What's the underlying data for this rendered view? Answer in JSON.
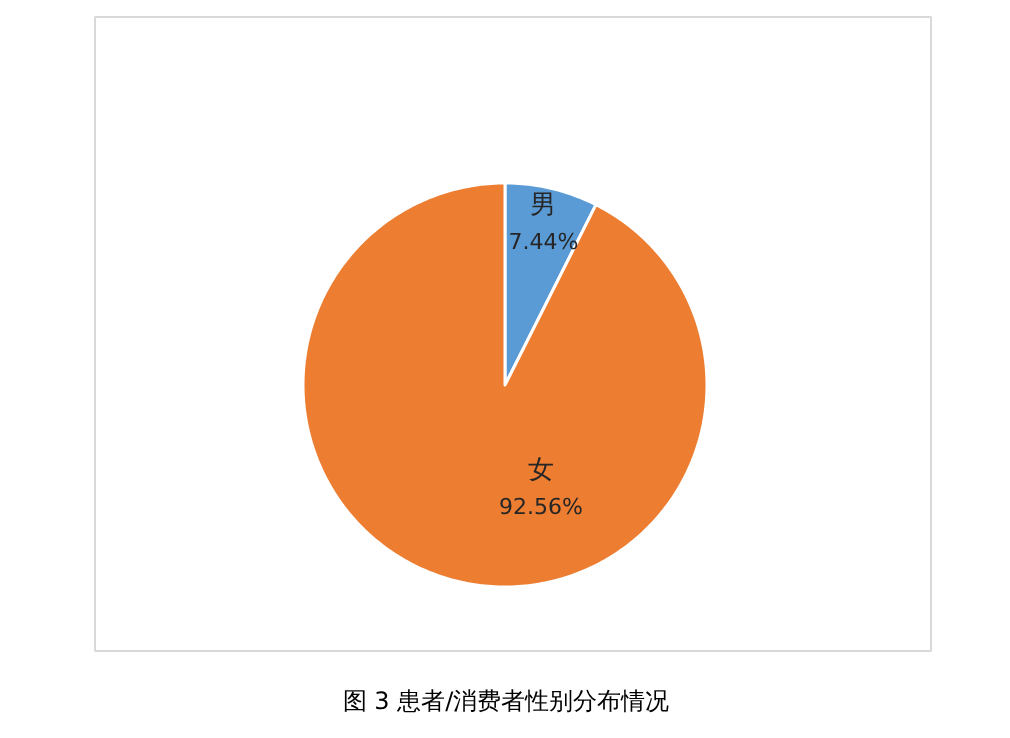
{
  "chart_data": {
    "type": "pie",
    "title": "图 3 患者/消费者性别分布情况",
    "categories": [
      "男",
      "女"
    ],
    "values": [
      7.44,
      92.56
    ],
    "value_labels": [
      "7.44%",
      "92.56%"
    ],
    "colors": [
      "#5b9bd5",
      "#ed7d31"
    ]
  }
}
